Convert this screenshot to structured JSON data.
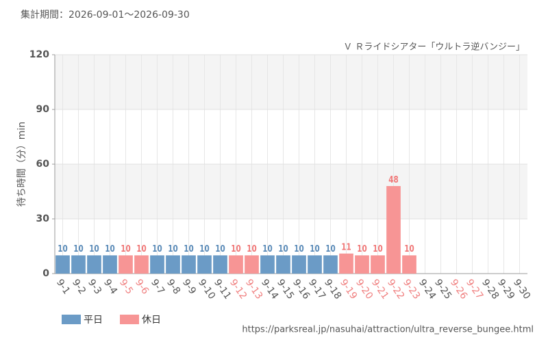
{
  "chart_data": {
    "type": "bar",
    "subtitle": "集計期間：2026-09-01～2026-09-30",
    "annotation": "Ｖ Ｒライドシアター「ウルトラ逆バンジー」",
    "y_label": "待ち時間（分）min",
    "source": "https://parksreal.jp/nasuhai/attraction/ultra_reverse_bungee.html",
    "categories": [
      "9-1",
      "9-2",
      "9-3",
      "9-4",
      "9-5",
      "9-6",
      "9-7",
      "9-8",
      "9-9",
      "9-10",
      "9-11",
      "9-12",
      "9-13",
      "9-14",
      "9-15",
      "9-16",
      "9-17",
      "9-18",
      "9-19",
      "9-20",
      "9-21",
      "9-22",
      "9-23",
      "9-24",
      "9-25",
      "9-26",
      "9-27",
      "9-28",
      "9-29",
      "9-30"
    ],
    "x_label_colors": [
      "#555",
      "#555",
      "#555",
      "#555",
      "#f08080",
      "#f08080",
      "#555",
      "#555",
      "#555",
      "#555",
      "#555",
      "#f08080",
      "#f08080",
      "#555",
      "#555",
      "#555",
      "#555",
      "#555",
      "#f08080",
      "#f08080",
      "#f08080",
      "#f08080",
      "#f08080",
      "#555",
      "#555",
      "#f08080",
      "#f08080",
      "#555",
      "#555",
      "#555"
    ],
    "series": [
      {
        "name": "平日",
        "color": "#6b9bc6",
        "label_color": "#5b8bb8",
        "values": [
          10,
          10,
          10,
          10,
          null,
          null,
          10,
          10,
          10,
          10,
          10,
          null,
          null,
          10,
          10,
          10,
          10,
          10,
          null,
          null,
          null,
          null,
          null,
          null,
          null,
          null,
          null,
          null,
          null,
          null
        ]
      },
      {
        "name": "休日",
        "color": "#f79595",
        "label_color": "#f07878",
        "values": [
          null,
          null,
          null,
          null,
          10,
          10,
          null,
          null,
          null,
          null,
          null,
          10,
          10,
          null,
          null,
          null,
          null,
          null,
          11,
          10,
          10,
          48,
          10,
          null,
          null,
          null,
          null,
          null,
          null,
          null
        ]
      }
    ],
    "ylim": [
      0,
      120
    ],
    "yticks": [
      0,
      30,
      60,
      90,
      120
    ],
    "grid": true
  }
}
